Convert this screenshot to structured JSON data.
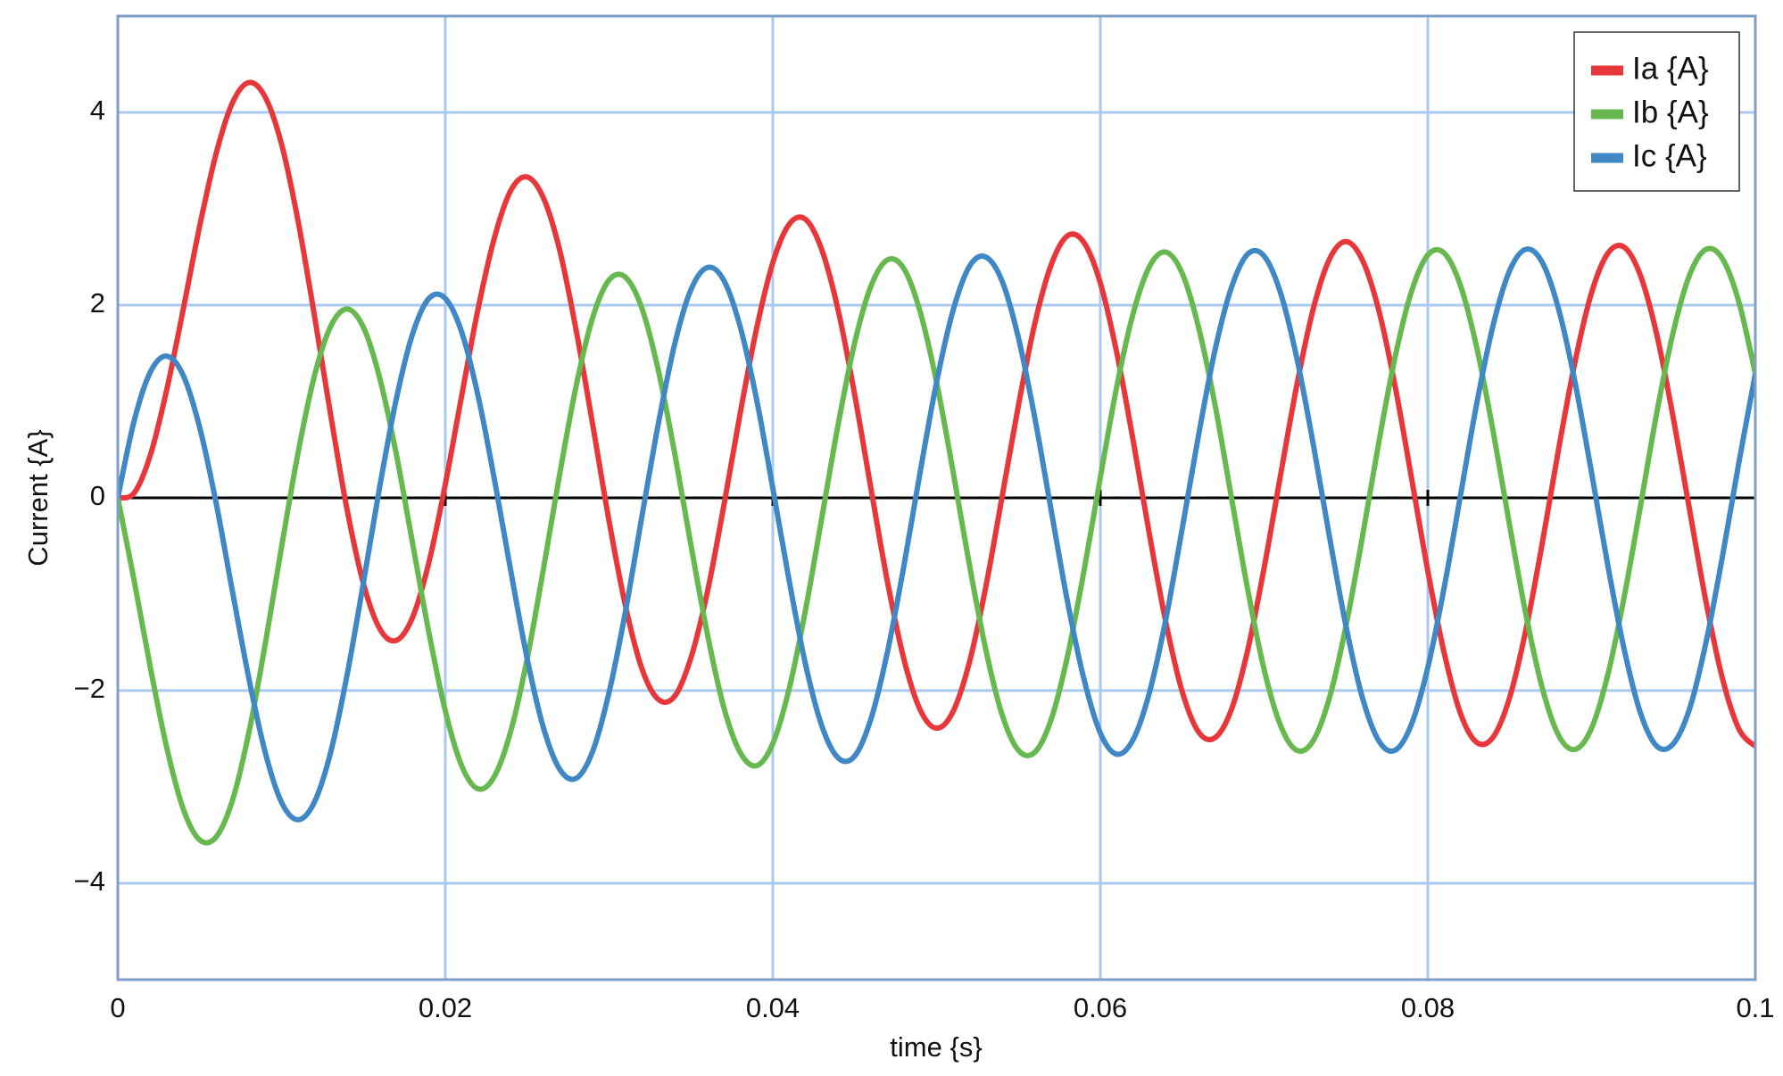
{
  "chart_data": {
    "type": "line",
    "x_label": "time {s}",
    "y_label": "Current {A}",
    "x": [
      0,
      0.001,
      0.002,
      0.003,
      0.004,
      0.005,
      0.006,
      0.007,
      0.008,
      0.009,
      0.01,
      0.011,
      0.012,
      0.013,
      0.014,
      0.015,
      0.016,
      0.017,
      0.018,
      0.019,
      0.02,
      0.021,
      0.022,
      0.023,
      0.024,
      0.025,
      0.026,
      0.027,
      0.028,
      0.029,
      0.03,
      0.031,
      0.032,
      0.033,
      0.034,
      0.035,
      0.036,
      0.037,
      0.038,
      0.039,
      0.04,
      0.041,
      0.042,
      0.043,
      0.044,
      0.045,
      0.046,
      0.047,
      0.048,
      0.049,
      0.05,
      0.051,
      0.052,
      0.053,
      0.054,
      0.055,
      0.056,
      0.057,
      0.058,
      0.059,
      0.06,
      0.061,
      0.062,
      0.063,
      0.064,
      0.065,
      0.066,
      0.067,
      0.068,
      0.069,
      0.07,
      0.071,
      0.072,
      0.073,
      0.074,
      0.075,
      0.076,
      0.077,
      0.078,
      0.079,
      0.08,
      0.081,
      0.082,
      0.083,
      0.084,
      0.085,
      0.086,
      0.087,
      0.088,
      0.089,
      0.09,
      0.091,
      0.092,
      0.093,
      0.094,
      0.095,
      0.096,
      0.097,
      0.098,
      0.099,
      0.1
    ],
    "series": [
      {
        "name": "Ia {A}",
        "color": "#e8373a",
        "values": [
          0,
          0.05,
          0.45,
          1.13,
          1.96,
          2.82,
          3.57,
          4.1,
          4.31,
          4.16,
          3.67,
          2.88,
          1.9,
          0.86,
          -0.12,
          -0.89,
          -1.36,
          -1.48,
          -1.24,
          -0.67,
          0.14,
          1.06,
          1.96,
          2.7,
          3.19,
          3.33,
          3.11,
          2.56,
          1.73,
          0.76,
          -0.24,
          -1.12,
          -1.77,
          -2.09,
          -2.06,
          -1.66,
          -0.98,
          -0.09,
          0.87,
          1.75,
          2.44,
          2.84,
          2.89,
          2.57,
          1.94,
          1.07,
          0.09,
          -0.87,
          -1.67,
          -2.2,
          -2.39,
          -2.22,
          -1.71,
          -0.93,
          0.01,
          0.96,
          1.81,
          2.42,
          2.72,
          2.65,
          2.23,
          1.51,
          0.6,
          -0.38,
          -1.29,
          -2.01,
          -2.43,
          -2.49,
          -2.2,
          -1.58,
          -0.73,
          0.23,
          1.17,
          1.96,
          2.48,
          2.66,
          2.47,
          1.95,
          1.16,
          0.21,
          -0.76,
          -1.61,
          -2.24,
          -2.54,
          -2.48,
          -2.07,
          -1.36,
          -0.46,
          0.52,
          1.42,
          2.13,
          2.54,
          2.6,
          2.3,
          1.68,
          0.82,
          -0.14,
          -1.09,
          -1.88,
          -2.4,
          -2.58
        ]
      },
      {
        "name": "Ib {A}",
        "color": "#66b84f",
        "values": [
          0,
          -0.86,
          -1.77,
          -2.6,
          -3.23,
          -3.55,
          -3.52,
          -3.14,
          -2.44,
          -1.52,
          -0.51,
          0.46,
          1.26,
          1.78,
          1.96,
          1.77,
          1.24,
          0.46,
          -0.47,
          -1.4,
          -2.21,
          -2.78,
          -3.02,
          -2.89,
          -2.42,
          -1.67,
          -0.73,
          0.26,
          1.17,
          1.87,
          2.26,
          2.29,
          1.97,
          1.33,
          0.47,
          -0.49,
          -1.41,
          -2.17,
          -2.64,
          -2.78,
          -2.55,
          -1.98,
          -1.16,
          -0.2,
          0.77,
          1.61,
          2.2,
          2.47,
          2.38,
          1.93,
          1.2,
          0.28,
          -0.69,
          -1.57,
          -2.25,
          -2.62,
          -2.64,
          -2.3,
          -1.64,
          -0.76,
          0.21,
          1.15,
          1.91,
          2.4,
          2.55,
          2.33,
          1.77,
          0.97,
          0.01,
          -0.95,
          -1.78,
          -2.36,
          -2.62,
          -2.52,
          -2.07,
          -1.33,
          -0.41,
          0.57,
          1.46,
          2.14,
          2.52,
          2.54,
          2.2,
          1.55,
          0.68,
          -0.29,
          -1.22,
          -1.98,
          -2.47,
          -2.61,
          -2.39,
          -1.83,
          -1.02,
          -0.07,
          0.9,
          1.73,
          2.32,
          2.58,
          2.48,
          2.03,
          1.29
        ]
      },
      {
        "name": "Ic {A}",
        "color": "#3f88c5",
        "values": [
          0,
          0.8,
          1.31,
          1.47,
          1.27,
          0.73,
          -0.05,
          -0.97,
          -1.87,
          -2.64,
          -3.16,
          -3.34,
          -3.16,
          -2.64,
          -1.84,
          -0.88,
          0.12,
          1.02,
          1.7,
          2.07,
          2.07,
          1.72,
          1.06,
          0.19,
          -0.76,
          -1.67,
          -2.39,
          -2.82,
          -2.91,
          -2.63,
          -2.02,
          -1.18,
          -0.2,
          0.76,
          1.59,
          2.16,
          2.39,
          2.26,
          1.78,
          1.03,
          0.1,
          -0.86,
          -1.73,
          -2.37,
          -2.7,
          -2.68,
          -2.29,
          -1.6,
          -0.71,
          0.27,
          1.2,
          1.94,
          2.4,
          2.5,
          2.25,
          1.66,
          0.83,
          -0.13,
          -1.08,
          -1.88,
          -2.44,
          -2.66,
          -2.51,
          -2.02,
          -1.26,
          -0.32,
          0.65,
          1.53,
          2.18,
          2.53,
          2.51,
          2.13,
          1.45,
          0.56,
          -0.41,
          -1.33,
          -2.07,
          -2.52,
          -2.62,
          -2.35,
          -1.76,
          -0.93,
          0.03,
          0.99,
          1.8,
          2.36,
          2.58,
          2.44,
          1.95,
          1.19,
          0.26,
          -0.71,
          -1.58,
          -2.24,
          -2.58,
          -2.55,
          -2.18,
          -1.49,
          -0.6,
          0.37,
          1.29
        ]
      }
    ],
    "xlim": [
      0,
      0.1
    ],
    "ylim": [
      -5,
      5
    ],
    "xticks": [
      0,
      0.02,
      0.04,
      0.06,
      0.08,
      0.1
    ],
    "yticks": [
      {
        "value": -4,
        "label": "−4"
      },
      {
        "value": -2,
        "label": "−2"
      },
      0,
      2,
      4
    ],
    "grid": true,
    "legend": "upper right"
  }
}
